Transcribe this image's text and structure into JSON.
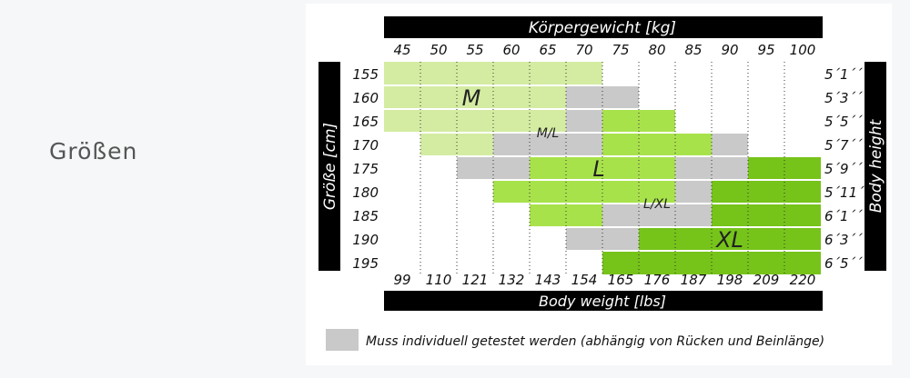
{
  "page": {
    "heading": "Größen"
  },
  "chart_data": {
    "type": "heatmap",
    "title_top": "Körpergewicht [kg]",
    "title_bottom": "Body weight [lbs]",
    "ylabel_left": "Größe [cm]",
    "ylabel_right": "Body height",
    "x_kg": [
      "45",
      "50",
      "55",
      "60",
      "65",
      "70",
      "75",
      "80",
      "85",
      "90",
      "95",
      "100"
    ],
    "x_lbs": [
      "99",
      "110",
      "121",
      "132",
      "143",
      "154",
      "165",
      "176",
      "187",
      "198",
      "209",
      "220"
    ],
    "y_cm": [
      "155",
      "160",
      "165",
      "170",
      "175",
      "180",
      "185",
      "190",
      "195"
    ],
    "y_ft": [
      "5´1´´",
      "5´3´´",
      "5´5´´",
      "5´7´´",
      "5´9´´",
      "5´11´´",
      "6´1´´",
      "6´3´´",
      "6´5´´"
    ],
    "grid": [
      [
        "M",
        "M",
        "M",
        "M",
        "M",
        "M",
        "",
        "",
        "",
        "",
        "",
        ""
      ],
      [
        "M",
        "M",
        "M",
        "M",
        "M",
        "ML",
        "ML",
        "",
        "",
        "",
        "",
        ""
      ],
      [
        "M",
        "M",
        "M",
        "M",
        "M",
        "ML",
        "L",
        "L",
        "",
        "",
        "",
        ""
      ],
      [
        "",
        "M",
        "M",
        "ML",
        "ML",
        "ML",
        "L",
        "L",
        "L",
        "LXL",
        "",
        ""
      ],
      [
        "",
        "",
        "ML",
        "ML",
        "L",
        "L",
        "L",
        "L",
        "LXL",
        "LXL",
        "XL",
        "XL"
      ],
      [
        "",
        "",
        "",
        "L",
        "L",
        "L",
        "L",
        "L",
        "LXL",
        "XL",
        "XL",
        "XL"
      ],
      [
        "",
        "",
        "",
        "",
        "L",
        "L",
        "LXL",
        "LXL",
        "LXL",
        "XL",
        "XL",
        "XL"
      ],
      [
        "",
        "",
        "",
        "",
        "",
        "LXL",
        "LXL",
        "XL",
        "XL",
        "XL",
        "XL",
        "XL"
      ],
      [
        "",
        "",
        "",
        "",
        "",
        "",
        "XL",
        "XL",
        "XL",
        "XL",
        "XL",
        "XL"
      ]
    ],
    "size_labels": [
      {
        "text": "M",
        "row": 1.5,
        "col": 2.4,
        "size": "big"
      },
      {
        "text": "M/L",
        "row": 3,
        "col": 4.5,
        "size": "small"
      },
      {
        "text": "L",
        "row": 4.5,
        "col": 5.9,
        "size": "big"
      },
      {
        "text": "L/XL",
        "row": 6,
        "col": 7.5,
        "size": "small"
      },
      {
        "text": "XL",
        "row": 7.5,
        "col": 9.5,
        "size": "big"
      }
    ],
    "legend": {
      "text": "Muss individuell getestet werden (abhängig von Rücken und Beinlänge)"
    },
    "colors": {
      "M": "#d4eca2",
      "ML": "#c9c9c9",
      "L": "#a8e24b",
      "LXL": "#c9c9c9",
      "XL": "#76c31a",
      "bar": "#000000",
      "empty": "#ffffff"
    }
  }
}
